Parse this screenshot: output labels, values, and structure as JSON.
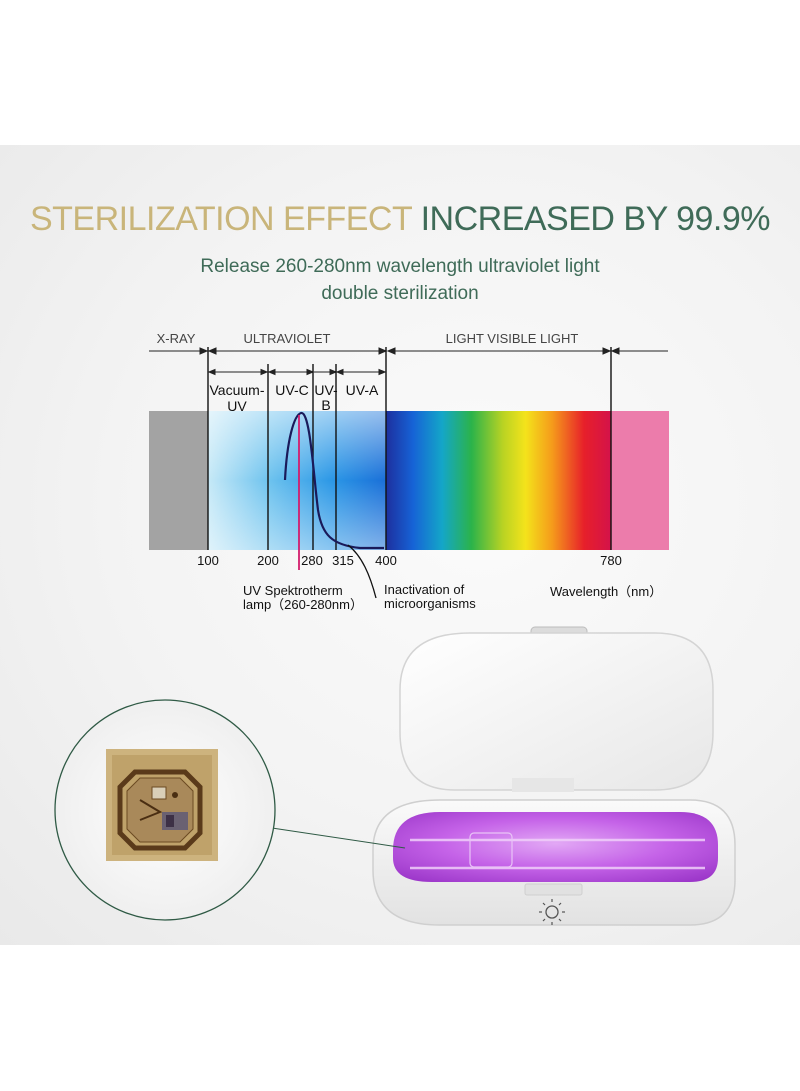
{
  "headline": {
    "part1": "STERILIZATION EFFECT",
    "part2": "INCREASED BY 99.9%",
    "color1": "#c9b57a",
    "color2": "#3f6b58"
  },
  "subtitle": {
    "line1": "Release 260-280nm wavelength ultraviolet light",
    "line2": "double sterilization"
  },
  "spectrum": {
    "regions": {
      "xray": "X-RAY",
      "ultraviolet": "ULTRAVIOLET",
      "visible": "LIGHT VISIBLE LIGHT"
    },
    "bands": {
      "vacuum_uv_1": "Vacuum-",
      "vacuum_uv_2": "UV",
      "uvc": "UV-C",
      "uvb_1": "UV-",
      "uvb_2": "B",
      "uva": "UV-A"
    },
    "ticks": [
      "100",
      "200",
      "280",
      "315",
      "400",
      "780"
    ],
    "lamp_label_1": "UV Spektrotherm",
    "lamp_label_2": "lamp（260-280nm）",
    "inactivation_1": "Inactivation  of",
    "inactivation_2": "microorganisms",
    "wavelength_label": "Wavelength（nm）"
  },
  "device": {
    "uv_glow_color": "#b04fd6",
    "button_icon": "sun-icon",
    "chip_icon": "uv-led-chip"
  }
}
